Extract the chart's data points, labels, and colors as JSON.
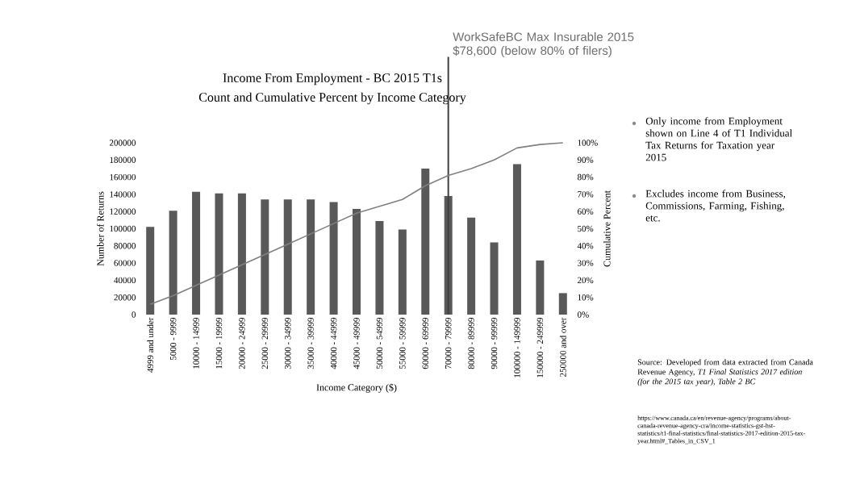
{
  "chart_data": {
    "type": "bar",
    "title": "Income From Employment - BC 2015 T1s",
    "subtitle": "Count and Cumulative Percent by Income Category",
    "xlabel": "Income Category ($)",
    "ylabel": "Number of Returns",
    "y2label": "Cumulative Percent",
    "categories": [
      "4999 and under",
      "5000 - 9999",
      "10000 - 14999",
      "15000 - 19999",
      "20000 - 24999",
      "25000 - 29999",
      "30000 - 34999",
      "35000 - 39999",
      "40000 - 44999",
      "45000 - 49999",
      "50000 - 54999",
      "55000 - 59999",
      "60000 - 69999",
      "70000 - 79999",
      "80000 - 89999",
      "90000 - 99999",
      "100000 - 149999",
      "150000 - 249999",
      "250000 and over"
    ],
    "series": [
      {
        "color": "#595959",
        "values": [
          102000,
          121000,
          143000,
          141000,
          141000,
          134000,
          134000,
          134000,
          131000,
          123000,
          109000,
          99000,
          170000,
          138000,
          113000,
          84000,
          175000,
          63000,
          25000
        ]
      },
      {
        "type": "line",
        "axis": "y2",
        "color": "#808080",
        "values": [
          6,
          11,
          17,
          23,
          29,
          35,
          41,
          47,
          53,
          59,
          63,
          67,
          75,
          81,
          85,
          90,
          97,
          99,
          100
        ]
      }
    ],
    "ylim": [
      0,
      200000
    ],
    "yticks": [
      0,
      20000,
      40000,
      60000,
      80000,
      100000,
      120000,
      140000,
      160000,
      180000,
      200000
    ],
    "y2lim": [
      0,
      100
    ],
    "y2ticks": [
      {
        "value": 0,
        "label": "0%"
      },
      {
        "value": 10,
        "label": "10%"
      },
      {
        "value": 20,
        "label": "20%"
      },
      {
        "value": 30,
        "label": "30%"
      },
      {
        "value": 40,
        "label": "40%"
      },
      {
        "value": 50,
        "label": "50%"
      },
      {
        "value": 60,
        "label": "60%"
      },
      {
        "value": 70,
        "label": "70%"
      },
      {
        "value": 80,
        "label": "80%"
      },
      {
        "value": 90,
        "label": "90%"
      },
      {
        "value": 100,
        "label": "100%"
      }
    ],
    "ref_lines": [
      {
        "axis": "x",
        "value": "70000 - 79999",
        "label": "WorkSafeBC Max Insurable 2015 $78,600 (below 80% of filers)",
        "color": "#404040"
      }
    ],
    "annotations": [
      "Only income from Employment shown on Line 4 of T1 Individual Tax Returns for Taxation year 2015",
      "Excludes income from Business, Commissions, Farming, Fishing, etc.",
      "Source:  Developed from data extracted from Canada Revenue Agency, *T1 Final Statistics 2017 edition (for the 2015 tax year), Table 2 BC*",
      "https://www.canada.ca/en/revenue-agency/programs/about-canada-revenue-agency-cra/income-statistics-gst-hst-statistics/t1-final-statistics/final-statistics-2017-edition-2015-tax-year.html#_Tables_in_CSV_1"
    ]
  }
}
